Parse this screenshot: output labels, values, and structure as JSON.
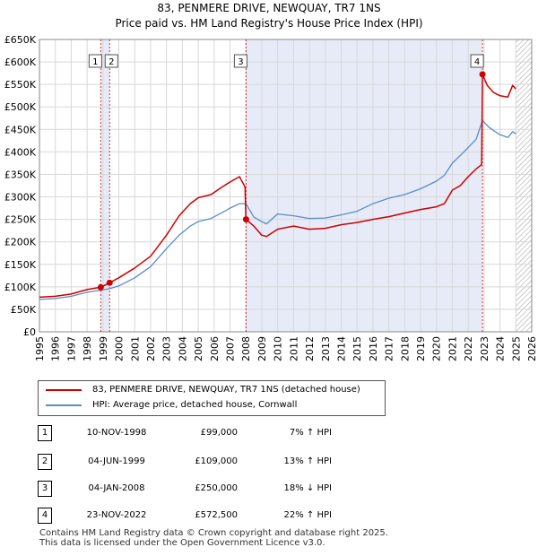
{
  "title": "83, PENMERE DRIVE, NEWQUAY, TR7 1NS",
  "subtitle": "Price paid vs. HM Land Registry's House Price Index (HPI)",
  "legend": {
    "property": "83, PENMERE DRIVE, NEWQUAY, TR7 1NS (detached house)",
    "hpi": "HPI: Average price, detached house, Cornwall"
  },
  "colors": {
    "property": "#cc0000",
    "hpi": "#5b8cc8",
    "shade": "#e6ebf7",
    "marker_box": "#555555"
  },
  "chart_data": {
    "type": "line",
    "title": "83, PENMERE DRIVE, NEWQUAY, TR7 1NS",
    "subtitle": "Price paid vs. HM Land Registry's House Price Index (HPI)",
    "xlabel": "",
    "ylabel": "",
    "xlim": [
      1995,
      2026
    ],
    "ylim": [
      0,
      650000
    ],
    "y_ticks": [
      0,
      50000,
      100000,
      150000,
      200000,
      250000,
      300000,
      350000,
      400000,
      450000,
      500000,
      550000,
      600000,
      650000
    ],
    "y_tick_labels": [
      "£0",
      "£50K",
      "£100K",
      "£150K",
      "£200K",
      "£250K",
      "£300K",
      "£350K",
      "£400K",
      "£450K",
      "£500K",
      "£550K",
      "£600K",
      "£650K"
    ],
    "x_ticks": [
      1995,
      1996,
      1997,
      1998,
      1999,
      2000,
      2001,
      2002,
      2003,
      2004,
      2005,
      2006,
      2007,
      2008,
      2009,
      2010,
      2011,
      2012,
      2013,
      2014,
      2015,
      2016,
      2017,
      2018,
      2019,
      2020,
      2021,
      2022,
      2023,
      2024,
      2025,
      2026
    ],
    "x_tick_labels": [
      "1995",
      "1996",
      "1997",
      "1998",
      "1999",
      "2000",
      "2001",
      "2002",
      "2003",
      "2004",
      "2005",
      "2006",
      "2007",
      "2008",
      "2009",
      "2010",
      "2011",
      "2012",
      "2013",
      "2014",
      "2015",
      "2016",
      "2017",
      "2018",
      "2019",
      "2020",
      "2021",
      "2022",
      "2023",
      "2024",
      "2025",
      "2026"
    ],
    "grid": true,
    "legend_position": "bottom",
    "shaded_ranges": [
      [
        1998.86,
        1999.42
      ],
      [
        2008.01,
        2022.9
      ]
    ],
    "hatched_range": [
      2025.0,
      2026.0
    ],
    "series": [
      {
        "name": "83, PENMERE DRIVE, NEWQUAY, TR7 1NS (detached house)",
        "color": "#cc0000",
        "x": [
          1995.0,
          1996.0,
          1997.0,
          1998.0,
          1998.86,
          1999.42,
          2000.0,
          2001.0,
          2002.0,
          2003.0,
          2003.8,
          2004.5,
          2005.0,
          2005.8,
          2006.5,
          2007.0,
          2007.6,
          2007.95,
          2008.0,
          2008.5,
          2009.0,
          2009.3,
          2010.0,
          2011.0,
          2012.0,
          2013.0,
          2014.0,
          2015.0,
          2016.0,
          2017.0,
          2018.0,
          2019.0,
          2020.0,
          2020.5,
          2021.0,
          2021.5,
          2022.0,
          2022.5,
          2022.85,
          2022.9,
          2023.2,
          2023.6,
          2024.0,
          2024.5,
          2024.8,
          2025.0
        ],
        "y": [
          77000,
          79000,
          84000,
          94000,
          99000,
          109000,
          120000,
          142000,
          168000,
          215000,
          258000,
          285000,
          298000,
          305000,
          322000,
          333000,
          345000,
          322000,
          250000,
          235000,
          215000,
          212000,
          228000,
          235000,
          228000,
          230000,
          238000,
          243000,
          250000,
          256000,
          264000,
          272000,
          278000,
          285000,
          315000,
          325000,
          345000,
          362000,
          372000,
          572500,
          548000,
          532000,
          525000,
          522000,
          548000,
          540000
        ]
      },
      {
        "name": "HPI: Average price, detached house, Cornwall",
        "color": "#5b8cc8",
        "x": [
          1995.0,
          1996.0,
          1997.0,
          1998.0,
          1998.86,
          1999.42,
          2000.0,
          2001.0,
          2002.0,
          2003.0,
          2003.8,
          2004.5,
          2005.0,
          2005.8,
          2006.5,
          2007.0,
          2007.6,
          2008.0,
          2008.5,
          2009.0,
          2009.3,
          2010.0,
          2011.0,
          2012.0,
          2013.0,
          2014.0,
          2015.0,
          2016.0,
          2017.0,
          2018.0,
          2019.0,
          2020.0,
          2020.5,
          2021.0,
          2021.5,
          2022.0,
          2022.5,
          2022.9,
          2023.3,
          2023.7,
          2024.0,
          2024.5,
          2024.8,
          2025.0
        ],
        "y": [
          72000,
          74000,
          79000,
          88000,
          92500,
          96000,
          102000,
          120000,
          145000,
          185000,
          215000,
          235000,
          245000,
          252000,
          265000,
          275000,
          285000,
          285000,
          255000,
          245000,
          240000,
          262000,
          258000,
          252000,
          253000,
          260000,
          268000,
          285000,
          297000,
          305000,
          318000,
          335000,
          348000,
          375000,
          392000,
          410000,
          428000,
          470000,
          455000,
          445000,
          438000,
          432000,
          445000,
          440000
        ]
      }
    ],
    "annotations": [
      {
        "label": "1",
        "x": 1998.86,
        "y": 99000,
        "color": "#cc0000"
      },
      {
        "label": "2",
        "x": 1999.42,
        "y": 109000,
        "color": "#cc0000"
      },
      {
        "label": "3",
        "x": 2008.01,
        "y": 250000,
        "color": "#cc0000"
      },
      {
        "label": "4",
        "x": 2022.9,
        "y": 572500,
        "color": "#cc0000"
      }
    ]
  },
  "transactions": [
    {
      "num": "1",
      "date": "10-NOV-1998",
      "price": "£99,000",
      "hpi": "7% ↑ HPI"
    },
    {
      "num": "2",
      "date": "04-JUN-1999",
      "price": "£109,000",
      "hpi": "13% ↑ HPI"
    },
    {
      "num": "3",
      "date": "04-JAN-2008",
      "price": "£250,000",
      "hpi": "18% ↓ HPI"
    },
    {
      "num": "4",
      "date": "23-NOV-2022",
      "price": "£572,500",
      "hpi": "22% ↑ HPI"
    }
  ],
  "footer": {
    "line1": "Contains HM Land Registry data © Crown copyright and database right 2025.",
    "line2": "This data is licensed under the Open Government Licence v3.0."
  }
}
